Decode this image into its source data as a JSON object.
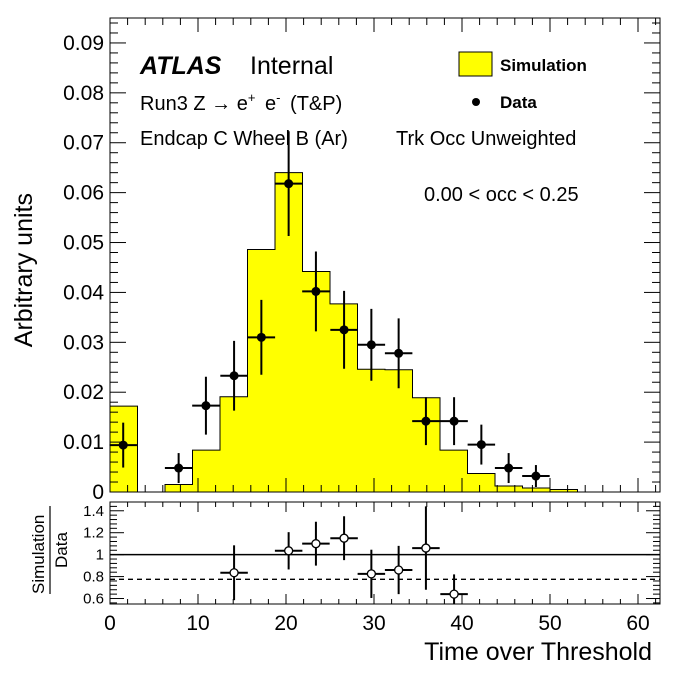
{
  "chart_data": [
    {
      "type": "bar",
      "xlabel": "Time over Threshold",
      "ylabel": "Arbitrary units",
      "xlim": [
        0,
        62.5
      ],
      "ylim": [
        0,
        0.095
      ],
      "x_ticks": [
        "0",
        "10",
        "20",
        "30",
        "40",
        "50",
        "60"
      ],
      "y_ticks": [
        "0",
        "0.01",
        "0.02",
        "0.03",
        "0.04",
        "0.05",
        "0.06",
        "0.07",
        "0.08",
        "0.09"
      ],
      "experiment": "ATLAS",
      "status": "Internal",
      "process_line_1": "Run3 Z",
      "process_line_2": "e",
      "process_line_3": "e",
      "process_line_4": "(T&P)",
      "region_label": "Endcap C Wheel B (Ar)",
      "weighting_label": "Trk Occ Unweighted",
      "selection_label": "0.00 < occ < 0.25",
      "legend": {
        "position": "top-right",
        "entries": [
          "Simulation",
          "Data"
        ]
      },
      "series": [
        {
          "name": "Simulation",
          "kind": "histogram",
          "color": "#ffff00",
          "bin_edges": [
            0,
            3.125,
            6.25,
            9.375,
            12.5,
            15.625,
            18.75,
            21.875,
            25,
            28.125,
            31.25,
            34.375,
            37.5,
            40.625,
            43.75,
            46.875,
            50,
            53.125
          ],
          "values": [
            0.0172,
            0,
            0.0015,
            0.0084,
            0.0191,
            0.0486,
            0.064,
            0.0442,
            0.0377,
            0.0246,
            0.0245,
            0.0189,
            0.0084,
            0.0037,
            0.0012,
            0.0008,
            0.0005
          ]
        },
        {
          "name": "Data",
          "kind": "points",
          "color": "#000000",
          "x": [
            1.5,
            7.8,
            10.9,
            14.1,
            17.2,
            20.3,
            23.4,
            26.6,
            29.7,
            32.8,
            35.9,
            39.1,
            42.2,
            45.3,
            48.4
          ],
          "y": [
            0.0094,
            0.0048,
            0.0173,
            0.0233,
            0.031,
            0.0618,
            0.0402,
            0.0325,
            0.0295,
            0.0278,
            0.0142,
            0.0142,
            0.0095,
            0.0048,
            0.0032
          ],
          "yerr": [
            0.0045,
            0.003,
            0.0058,
            0.007,
            0.0075,
            0.0105,
            0.008,
            0.0078,
            0.0072,
            0.007,
            0.0048,
            0.0048,
            0.004,
            0.003,
            0.0022
          ]
        }
      ]
    },
    {
      "type": "scatter",
      "xlabel": "Time over Threshold",
      "ylabel_numerator": "Simulation",
      "ylabel_denominator": "Data",
      "xlim": [
        0,
        62.5
      ],
      "ylim": [
        0.55,
        1.48
      ],
      "y_ticks": [
        "0.6",
        "0.8",
        "1",
        "1.2",
        "1.4"
      ],
      "reference_line": 1.0,
      "dashed_line": 0.775,
      "series": [
        {
          "name": "Simulation / Data",
          "x": [
            14.1,
            20.3,
            23.4,
            26.6,
            29.7,
            32.8,
            35.9,
            39.1
          ],
          "y": [
            0.835,
            1.035,
            1.1,
            1.15,
            0.825,
            0.86,
            1.06,
            0.64
          ],
          "yerr": [
            0.25,
            0.17,
            0.2,
            0.2,
            0.22,
            0.22,
            0.38,
            0.18
          ]
        }
      ]
    }
  ]
}
